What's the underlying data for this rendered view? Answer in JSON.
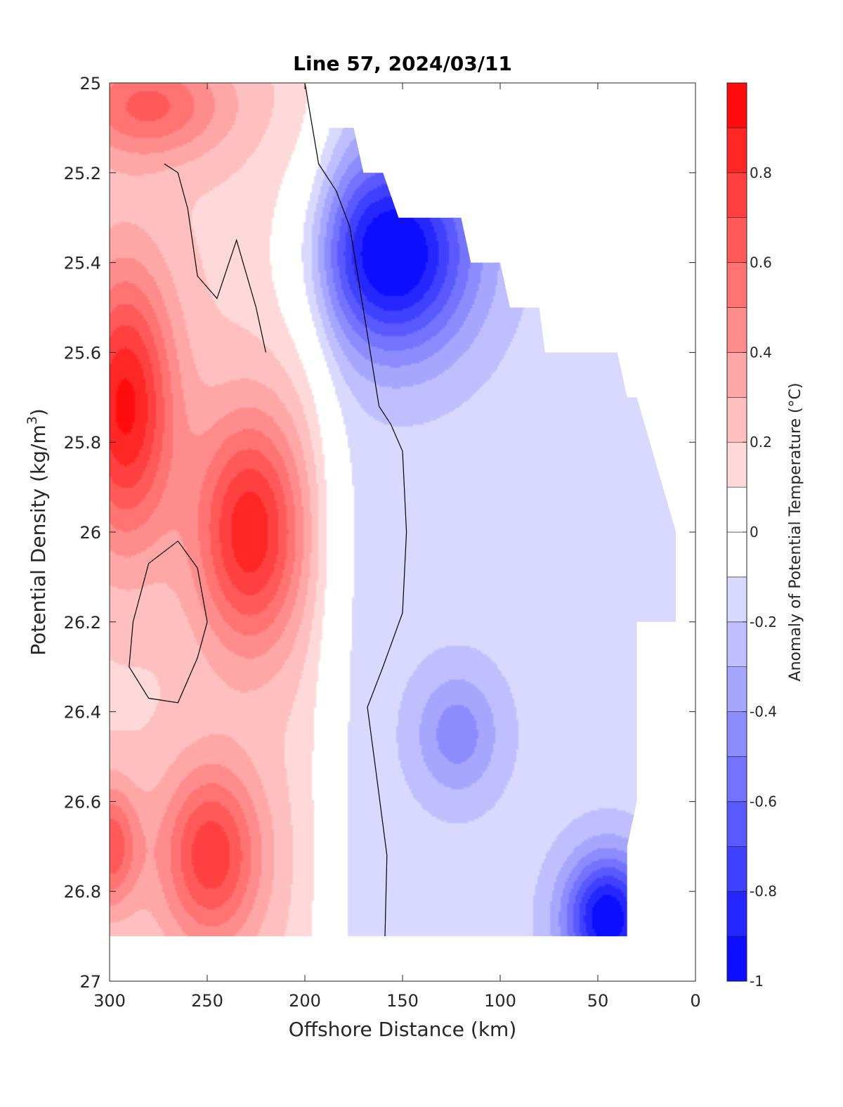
{
  "chart_data": {
    "type": "heatmap",
    "title": "Line 57, 2024/03/11",
    "xlabel": "Offshore Distance (km)",
    "ylabel_main": "Potential Density (kg/m",
    "ylabel_sup": "3",
    "ylabel_close": ")",
    "xlim": [
      300,
      0
    ],
    "ylim": [
      25,
      27
    ],
    "xticks": [
      300,
      250,
      200,
      150,
      100,
      50,
      0
    ],
    "xtick_labels": [
      "300",
      "250",
      "200",
      "150",
      "100",
      "50",
      "0"
    ],
    "yticks": [
      25,
      25.2,
      25.4,
      25.6,
      25.8,
      26,
      26.2,
      26.4,
      26.6,
      26.8,
      27
    ],
    "ytick_labels": [
      "25",
      "25.2",
      "25.4",
      "25.6",
      "25.8",
      "26",
      "26.2",
      "26.4",
      "26.6",
      "26.8",
      "27"
    ],
    "colorbar": {
      "label": "Anomaly of Potential Temperature (°C)",
      "range": [
        -1,
        1
      ],
      "levels": [
        -1,
        -0.9,
        -0.8,
        -0.7,
        -0.6,
        -0.5,
        -0.4,
        -0.3,
        -0.2,
        -0.1,
        0,
        0.1,
        0.2,
        0.3,
        0.4,
        0.5,
        0.6,
        0.7,
        0.8,
        0.9,
        1
      ],
      "ticks": [
        -1,
        -0.8,
        -0.6,
        -0.4,
        -0.2,
        0,
        0.2,
        0.4,
        0.6,
        0.8
      ],
      "tick_labels": [
        "-1",
        "-0.8",
        "-0.6",
        "-0.4",
        "-0.2",
        "0",
        "0.2",
        "0.4",
        "0.6",
        "0.8"
      ],
      "min_color": "#0000ff",
      "mid_color": "#ffffff",
      "max_color": "#ff0000"
    },
    "features": [
      {
        "name": "warm-core-offshore-upper",
        "x": 292,
        "y": 25.72,
        "value": 0.75,
        "rx": 25,
        "ry": 0.3
      },
      {
        "name": "warm-core-226km",
        "x": 228,
        "y": 26.0,
        "value": 0.7,
        "rx": 28,
        "ry": 0.26
      },
      {
        "name": "warm-core-deep-245km",
        "x": 248,
        "y": 26.72,
        "value": 0.6,
        "rx": 26,
        "ry": 0.2
      },
      {
        "name": "warm-core-deep-offshore",
        "x": 300,
        "y": 26.7,
        "value": 0.5,
        "rx": 15,
        "ry": 0.14
      },
      {
        "name": "warm-upper-surface",
        "x": 280,
        "y": 25.05,
        "value": 0.45,
        "rx": 40,
        "ry": 0.12
      },
      {
        "name": "cold-core-upper",
        "x": 155,
        "y": 25.38,
        "value": -0.9,
        "rx": 40,
        "ry": 0.22
      },
      {
        "name": "cold-core-deep-nearshore",
        "x": 45,
        "y": 26.86,
        "value": -0.85,
        "rx": 22,
        "ry": 0.14
      },
      {
        "name": "cool-patch-122km",
        "x": 122,
        "y": 26.45,
        "value": -0.3,
        "rx": 22,
        "ry": 0.14
      }
    ],
    "data_domain": {
      "left_x": 300,
      "bottom_y": 26.9,
      "top_edge": [
        [
          300,
          25
        ],
        [
          200,
          25
        ],
        [
          190,
          25.1
        ],
        [
          175,
          25.1
        ],
        [
          170,
          25.2
        ],
        [
          160,
          25.2
        ],
        [
          152,
          25.3
        ],
        [
          120,
          25.3
        ],
        [
          115,
          25.4
        ],
        [
          100,
          25.4
        ],
        [
          95,
          25.5
        ],
        [
          80,
          25.5
        ],
        [
          77,
          25.6
        ],
        [
          40,
          25.6
        ],
        [
          35,
          25.7
        ],
        [
          30,
          25.7
        ],
        [
          10,
          26.0
        ]
      ],
      "right_edge": [
        [
          10,
          26.0
        ],
        [
          10,
          26.2
        ],
        [
          30,
          26.2
        ],
        [
          30,
          26.6
        ],
        [
          35,
          26.7
        ],
        [
          35,
          26.9
        ]
      ]
    },
    "zero_contour_paths": [
      [
        [
          200,
          25.0
        ],
        [
          193,
          25.18
        ],
        [
          184,
          25.24
        ],
        [
          177,
          25.32
        ],
        [
          168,
          25.56
        ],
        [
          162,
          25.72
        ],
        [
          156,
          25.76
        ],
        [
          150,
          25.82
        ],
        [
          148,
          26.0
        ],
        [
          150,
          26.18
        ],
        [
          160,
          26.3
        ],
        [
          168,
          26.39
        ],
        [
          164,
          26.52
        ],
        [
          158,
          26.72
        ],
        [
          159,
          26.9
        ]
      ],
      [
        [
          272,
          25.18
        ],
        [
          265,
          25.2
        ],
        [
          260,
          25.28
        ],
        [
          255,
          25.43
        ],
        [
          245,
          25.48
        ],
        [
          235,
          25.35
        ],
        [
          225,
          25.5
        ],
        [
          220,
          25.6
        ]
      ],
      [
        [
          265,
          26.02
        ],
        [
          280,
          26.07
        ],
        [
          288,
          26.2
        ],
        [
          290,
          26.3
        ],
        [
          280,
          26.37
        ],
        [
          265,
          26.38
        ],
        [
          255,
          26.28
        ],
        [
          250,
          26.2
        ],
        [
          255,
          26.08
        ],
        [
          265,
          26.02
        ]
      ]
    ]
  }
}
